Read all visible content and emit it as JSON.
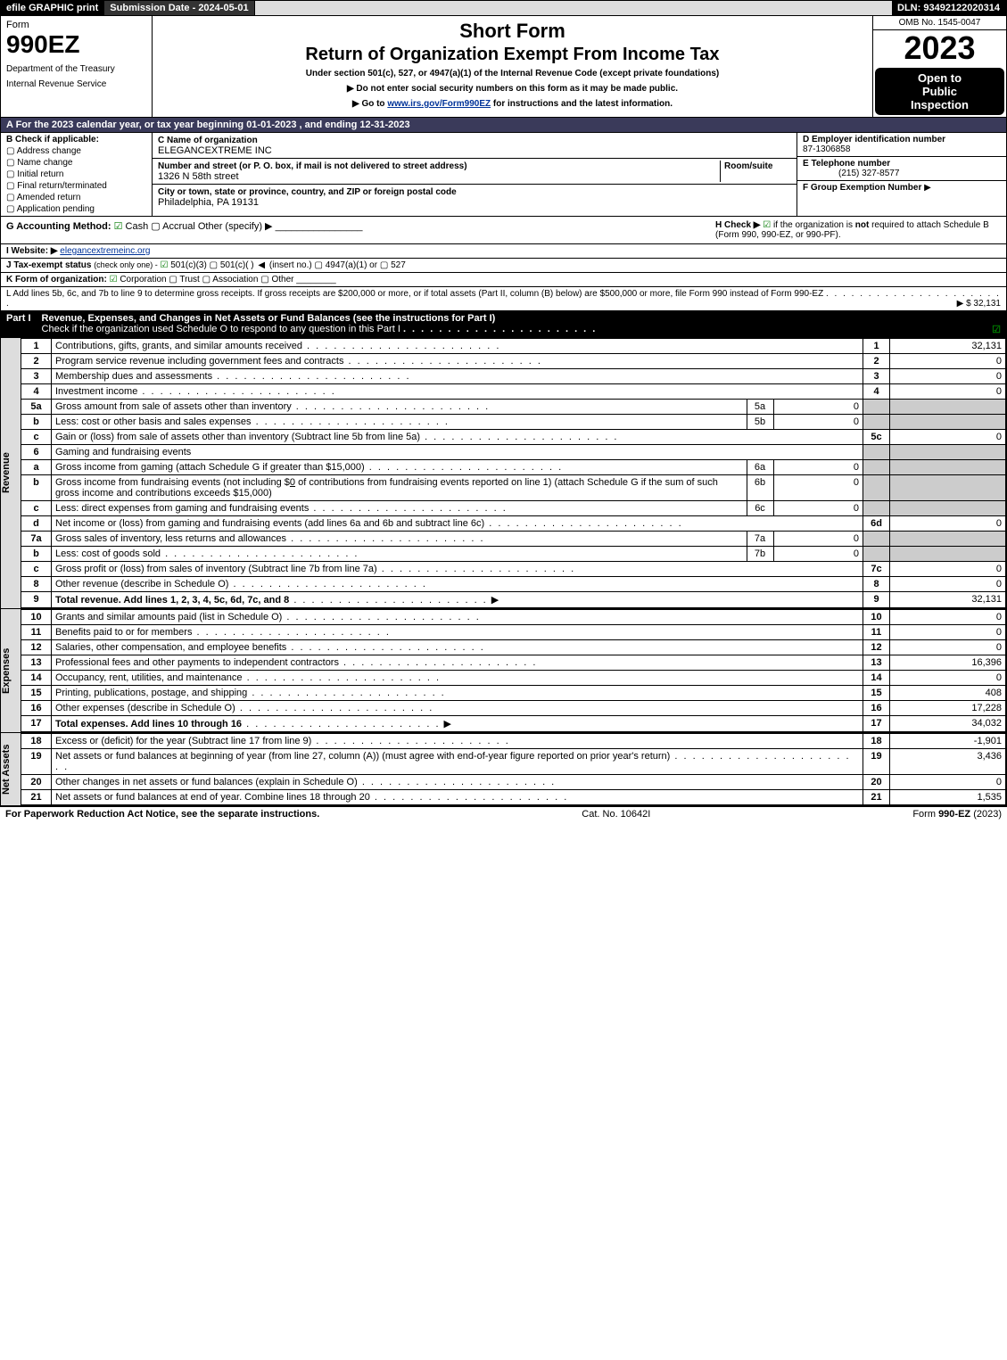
{
  "topbar": {
    "efile": "efile GRAPHIC print",
    "submission": "Submission Date - 2024-05-01",
    "dln": "DLN: 93492122020314"
  },
  "header": {
    "form_word": "Form",
    "form_num": "990EZ",
    "dept1": "Department of the Treasury",
    "dept2": "Internal Revenue Service",
    "short_form": "Short Form",
    "return_title": "Return of Organization Exempt From Income Tax",
    "under": "Under section 501(c), 527, or 4947(a)(1) of the Internal Revenue Code (except private foundations)",
    "note1": "▶ Do not enter social security numbers on this form as it may be made public.",
    "note2_pre": "▶ Go to ",
    "note2_link": "www.irs.gov/Form990EZ",
    "note2_post": " for instructions and the latest information.",
    "omb": "OMB No. 1545-0047",
    "year": "2023",
    "open1": "Open to",
    "open2": "Public",
    "open3": "Inspection"
  },
  "a_line": "A  For the 2023 calendar year, or tax year beginning 01-01-2023 , and ending 12-31-2023",
  "b": {
    "head": "B  Check if applicable:",
    "opts": [
      "Address change",
      "Name change",
      "Initial return",
      "Final return/terminated",
      "Amended return",
      "Application pending"
    ]
  },
  "c": {
    "name_lbl": "C Name of organization",
    "name": "ELEGANCEXTREME INC",
    "street_lbl": "Number and street (or P. O. box, if mail is not delivered to street address)",
    "room_lbl": "Room/suite",
    "street": "1326 N 58th street",
    "city_lbl": "City or town, state or province, country, and ZIP or foreign postal code",
    "city": "Philadelphia, PA  19131"
  },
  "d": {
    "lbl": "D Employer identification number",
    "val": "87-1306858"
  },
  "e": {
    "lbl": "E Telephone number",
    "val": "(215) 327-8577"
  },
  "f": {
    "lbl": "F Group Exemption Number",
    "arrow": "▶"
  },
  "g": {
    "lbl": "G Accounting Method:",
    "cash": "Cash",
    "accrual": "Accrual",
    "other": "Other (specify) ▶"
  },
  "h": {
    "lbl": "H  Check ▶",
    "text1": "if the organization is ",
    "not": "not",
    "text2": " required to attach Schedule B",
    "text3": "(Form 990, 990-EZ, or 990-PF)."
  },
  "i": {
    "lbl": "I Website: ▶",
    "val": "elegancextremeinc.org"
  },
  "j": {
    "lbl": "J Tax-exempt status",
    "sub": "(check only one) -",
    "opt1": "501(c)(3)",
    "opt2": "501(c)(  )",
    "insert": "(insert no.)",
    "opt3": "4947(a)(1) or",
    "opt4": "527"
  },
  "k": {
    "lbl": "K Form of organization:",
    "opts": [
      "Corporation",
      "Trust",
      "Association",
      "Other"
    ]
  },
  "l": {
    "text": "L Add lines 5b, 6c, and 7b to line 9 to determine gross receipts. If gross receipts are $200,000 or more, or if total assets (Part II, column (B) below) are $500,000 or more, file Form 990 instead of Form 990-EZ",
    "val": "▶ $ 32,131"
  },
  "part1": {
    "num": "Part I",
    "title": "Revenue, Expenses, and Changes in Net Assets or Fund Balances (see the instructions for Part I)",
    "check": "Check if the organization used Schedule O to respond to any question in this Part I"
  },
  "sides": {
    "rev": "Revenue",
    "exp": "Expenses",
    "na": "Net Assets"
  },
  "rev_rows": [
    {
      "n": "1",
      "d": "Contributions, gifts, grants, and similar amounts received",
      "nc": "1",
      "v": "32,131"
    },
    {
      "n": "2",
      "d": "Program service revenue including government fees and contracts",
      "nc": "2",
      "v": "0"
    },
    {
      "n": "3",
      "d": "Membership dues and assessments",
      "nc": "3",
      "v": "0"
    },
    {
      "n": "4",
      "d": "Investment income",
      "nc": "4",
      "v": "0"
    }
  ],
  "l5a": {
    "n": "5a",
    "d": "Gross amount from sale of assets other than inventory",
    "sn": "5a",
    "sv": "0"
  },
  "l5b": {
    "n": "b",
    "d": "Less: cost or other basis and sales expenses",
    "sn": "5b",
    "sv": "0"
  },
  "l5c": {
    "n": "c",
    "d": "Gain or (loss) from sale of assets other than inventory (Subtract line 5b from line 5a)",
    "nc": "5c",
    "v": "0"
  },
  "l6": {
    "n": "6",
    "d": "Gaming and fundraising events"
  },
  "l6a": {
    "n": "a",
    "d": "Gross income from gaming (attach Schedule G if greater than $15,000)",
    "sn": "6a",
    "sv": "0"
  },
  "l6b": {
    "n": "b",
    "d1": "Gross income from fundraising events (not including $",
    "amt": "0",
    "d2": " of contributions from fundraising events reported on line 1) (attach Schedule G if the sum of such gross income and contributions exceeds $15,000)",
    "sn": "6b",
    "sv": "0"
  },
  "l6c": {
    "n": "c",
    "d": "Less: direct expenses from gaming and fundraising events",
    "sn": "6c",
    "sv": "0"
  },
  "l6d": {
    "n": "d",
    "d": "Net income or (loss) from gaming and fundraising events (add lines 6a and 6b and subtract line 6c)",
    "nc": "6d",
    "v": "0"
  },
  "l7a": {
    "n": "7a",
    "d": "Gross sales of inventory, less returns and allowances",
    "sn": "7a",
    "sv": "0"
  },
  "l7b": {
    "n": "b",
    "d": "Less: cost of goods sold",
    "sn": "7b",
    "sv": "0"
  },
  "l7c": {
    "n": "c",
    "d": "Gross profit or (loss) from sales of inventory (Subtract line 7b from line 7a)",
    "nc": "7c",
    "v": "0"
  },
  "l8": {
    "n": "8",
    "d": "Other revenue (describe in Schedule O)",
    "nc": "8",
    "v": "0"
  },
  "l9": {
    "n": "9",
    "d": "Total revenue. Add lines 1, 2, 3, 4, 5c, 6d, 7c, and 8",
    "nc": "9",
    "v": "32,131",
    "bold": true
  },
  "exp_rows": [
    {
      "n": "10",
      "d": "Grants and similar amounts paid (list in Schedule O)",
      "nc": "10",
      "v": "0"
    },
    {
      "n": "11",
      "d": "Benefits paid to or for members",
      "nc": "11",
      "v": "0"
    },
    {
      "n": "12",
      "d": "Salaries, other compensation, and employee benefits",
      "nc": "12",
      "v": "0"
    },
    {
      "n": "13",
      "d": "Professional fees and other payments to independent contractors",
      "nc": "13",
      "v": "16,396"
    },
    {
      "n": "14",
      "d": "Occupancy, rent, utilities, and maintenance",
      "nc": "14",
      "v": "0"
    },
    {
      "n": "15",
      "d": "Printing, publications, postage, and shipping",
      "nc": "15",
      "v": "408"
    },
    {
      "n": "16",
      "d": "Other expenses (describe in Schedule O)",
      "nc": "16",
      "v": "17,228"
    },
    {
      "n": "17",
      "d": "Total expenses. Add lines 10 through 16",
      "nc": "17",
      "v": "34,032",
      "bold": true
    }
  ],
  "na_rows": [
    {
      "n": "18",
      "d": "Excess or (deficit) for the year (Subtract line 17 from line 9)",
      "nc": "18",
      "v": "-1,901"
    },
    {
      "n": "19",
      "d": "Net assets or fund balances at beginning of year (from line 27, column (A)) (must agree with end-of-year figure reported on prior year's return)",
      "nc": "19",
      "v": "3,436"
    },
    {
      "n": "20",
      "d": "Other changes in net assets or fund balances (explain in Schedule O)",
      "nc": "20",
      "v": "0"
    },
    {
      "n": "21",
      "d": "Net assets or fund balances at end of year. Combine lines 18 through 20",
      "nc": "21",
      "v": "1,535"
    }
  ],
  "footer": {
    "left": "For Paperwork Reduction Act Notice, see the separate instructions.",
    "center": "Cat. No. 10642I",
    "right_pre": "Form ",
    "right_form": "990-EZ",
    "right_post": " (2023)"
  }
}
